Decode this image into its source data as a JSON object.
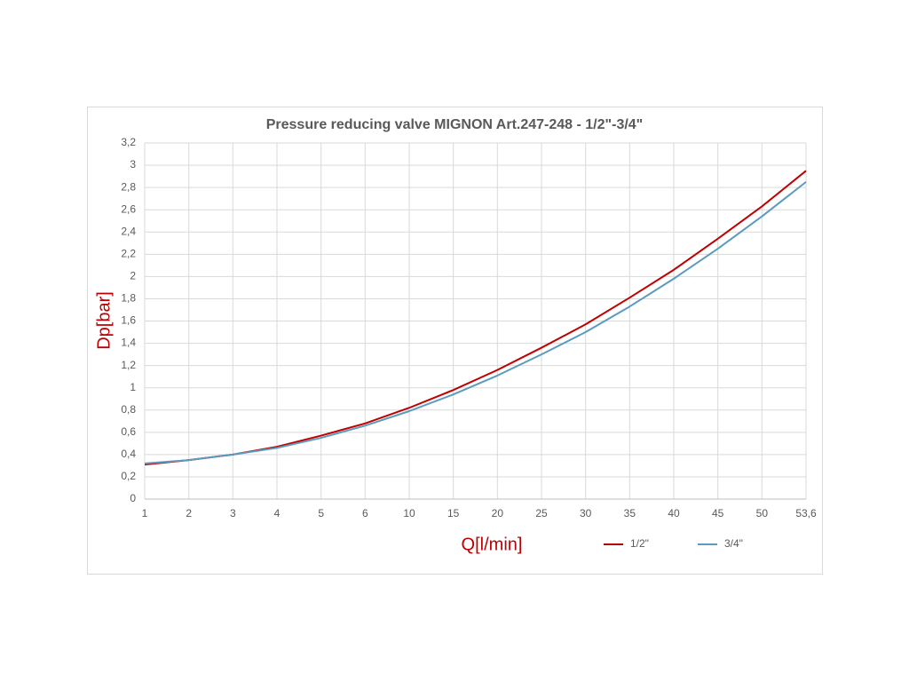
{
  "chart_data": {
    "type": "line",
    "title": "Pressure reducing valve MIGNON Art.247-248 - 1/2\"-3/4\"",
    "x_label": "Q[l/min]",
    "y_label": "Dp[bar]",
    "categories": [
      "1",
      "2",
      "3",
      "4",
      "5",
      "6",
      "10",
      "15",
      "20",
      "25",
      "30",
      "35",
      "40",
      "45",
      "50",
      "53,6"
    ],
    "series": [
      {
        "name": "1/2\"",
        "color": "#c00000",
        "values": [
          0.31,
          0.35,
          0.4,
          0.47,
          0.57,
          0.68,
          0.82,
          0.98,
          1.16,
          1.36,
          1.57,
          1.81,
          2.06,
          2.34,
          2.63,
          2.95
        ]
      },
      {
        "name": "3/4\"",
        "color": "#5b9bbd",
        "values": [
          0.32,
          0.35,
          0.4,
          0.46,
          0.55,
          0.66,
          0.79,
          0.94,
          1.11,
          1.3,
          1.5,
          1.73,
          1.98,
          2.25,
          2.54,
          2.85
        ]
      }
    ],
    "ylim": [
      0,
      3.2
    ],
    "yticks": [
      0,
      {
        "value": 0.2,
        "label": "0,2"
      },
      {
        "value": 0.4,
        "label": "0,4"
      },
      {
        "value": 0.6,
        "label": "0,6"
      },
      {
        "value": 0.8,
        "label": "0,8"
      },
      1,
      {
        "value": 1.2,
        "label": "1,2"
      },
      {
        "value": 1.4,
        "label": "1,4"
      },
      {
        "value": 1.6,
        "label": "1,6"
      },
      {
        "value": 1.8,
        "label": "1,8"
      },
      2,
      {
        "value": 2.2,
        "label": "2,2"
      },
      {
        "value": 2.4,
        "label": "2,4"
      },
      {
        "value": 2.6,
        "label": "2,6"
      },
      {
        "value": 2.8,
        "label": "2,8"
      },
      3,
      {
        "value": 3.2,
        "label": "3,2"
      }
    ],
    "grid": true,
    "legend": "bottom-right"
  }
}
